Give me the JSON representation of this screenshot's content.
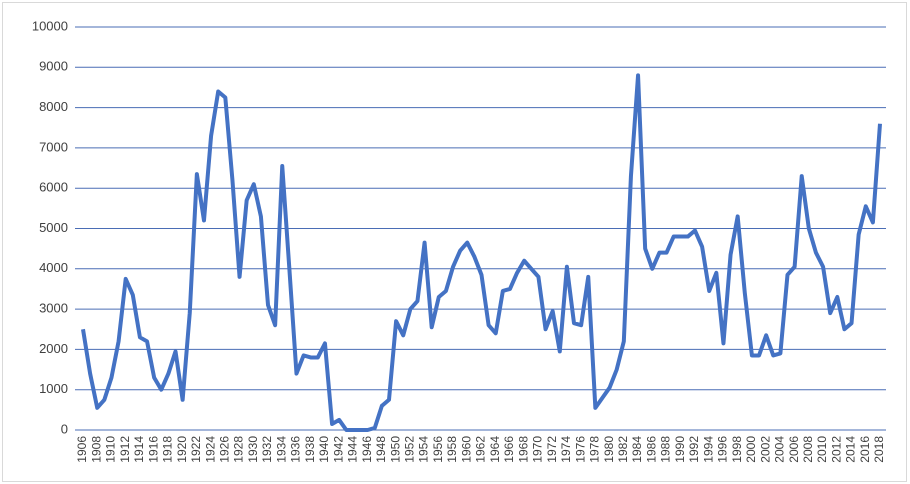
{
  "chart_data": {
    "type": "line",
    "x": [
      1906,
      1907,
      1908,
      1909,
      1910,
      1911,
      1912,
      1913,
      1914,
      1915,
      1916,
      1917,
      1918,
      1919,
      1920,
      1921,
      1922,
      1923,
      1924,
      1925,
      1926,
      1927,
      1928,
      1929,
      1930,
      1931,
      1932,
      1933,
      1934,
      1935,
      1936,
      1937,
      1938,
      1939,
      1940,
      1941,
      1942,
      1943,
      1944,
      1945,
      1946,
      1947,
      1948,
      1949,
      1950,
      1951,
      1952,
      1953,
      1954,
      1955,
      1956,
      1957,
      1958,
      1959,
      1960,
      1961,
      1962,
      1963,
      1964,
      1965,
      1966,
      1967,
      1968,
      1969,
      1970,
      1971,
      1972,
      1973,
      1974,
      1975,
      1976,
      1977,
      1978,
      1979,
      1980,
      1981,
      1982,
      1983,
      1984,
      1985,
      1986,
      1987,
      1988,
      1989,
      1990,
      1991,
      1992,
      1993,
      1994,
      1995,
      1996,
      1997,
      1998,
      1999,
      2000,
      2001,
      2002,
      2003,
      2004,
      2005,
      2006,
      2007,
      2008,
      2009,
      2010,
      2011,
      2012,
      2013,
      2014,
      2015,
      2016,
      2017,
      2018
    ],
    "series": [
      {
        "color": "#4472c4",
        "values": [
          2500,
          1400,
          550,
          750,
          1300,
          2200,
          3750,
          3350,
          2300,
          2200,
          1300,
          1000,
          1400,
          1950,
          750,
          2900,
          6350,
          5200,
          7300,
          8400,
          8250,
          6200,
          3800,
          5700,
          6100,
          5300,
          3100,
          2600,
          6550,
          4000,
          1400,
          1850,
          1800,
          1800,
          2150,
          150,
          250,
          0,
          0,
          0,
          0,
          50,
          600,
          750,
          2700,
          2350,
          3000,
          3200,
          4650,
          2550,
          3300,
          3450,
          4050,
          4450,
          4650,
          4300,
          3850,
          2600,
          2400,
          3450,
          3500,
          3900,
          4200,
          4000,
          3800,
          2500,
          2950,
          1950,
          4050,
          2650,
          2600,
          3800,
          550,
          800,
          1050,
          1500,
          2200,
          6300,
          8800,
          4500,
          4000,
          4400,
          4400,
          4800,
          4800,
          4800,
          4950,
          4550,
          3450,
          3900,
          2150,
          4350,
          5300,
          3400,
          1850,
          1850,
          2350,
          1850,
          1900,
          3850,
          4050,
          6300,
          5000,
          4400,
          4050,
          2900,
          3300,
          2500,
          2650,
          4850,
          5550,
          5150,
          7600
        ]
      }
    ],
    "xlim": [
      1906,
      2018
    ],
    "xticks": [
      1906,
      1908,
      1910,
      1912,
      1914,
      1916,
      1918,
      1920,
      1922,
      1924,
      1926,
      1928,
      1930,
      1932,
      1934,
      1936,
      1938,
      1940,
      1942,
      1944,
      1946,
      1948,
      1950,
      1952,
      1954,
      1956,
      1958,
      1960,
      1962,
      1964,
      1966,
      1968,
      1970,
      1972,
      1974,
      1976,
      1978,
      1980,
      1982,
      1984,
      1986,
      1988,
      1990,
      1992,
      1994,
      1996,
      1998,
      2000,
      2002,
      2004,
      2006,
      2008,
      2010,
      2012,
      2014,
      2016,
      2018
    ],
    "ylim": [
      0,
      10000
    ],
    "yticks": [
      0,
      1000,
      2000,
      3000,
      4000,
      5000,
      6000,
      7000,
      8000,
      9000,
      10000
    ],
    "grid": true
  }
}
